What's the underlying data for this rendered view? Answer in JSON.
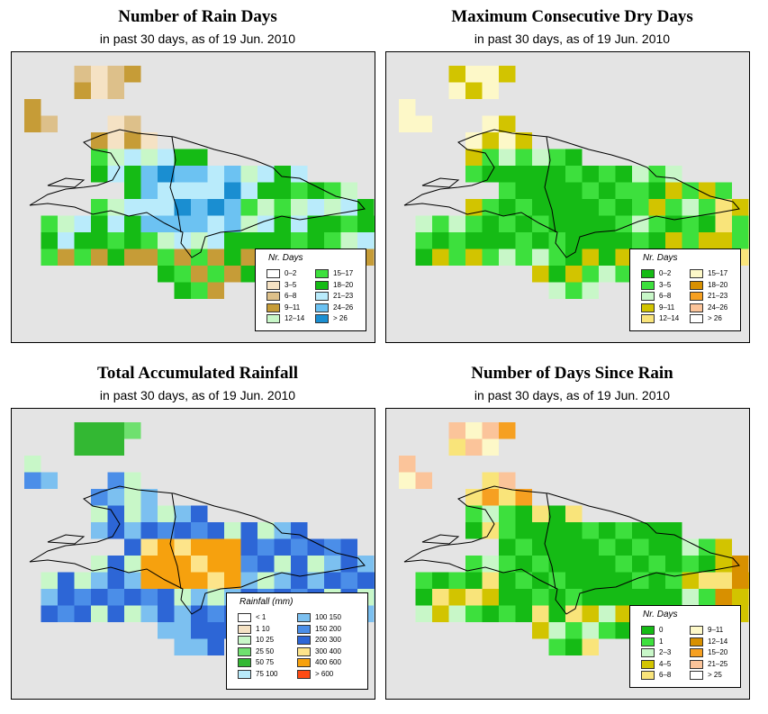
{
  "panels": [
    {
      "id": "rain-days",
      "title": "Number of Rain Days",
      "subtitle": "in past 30 days, as of  19 Jun. 2010",
      "legend": {
        "title": "Nr. Days",
        "items": [
          {
            "label": "0–2",
            "color": "#ffffff"
          },
          {
            "label": "3–5",
            "color": "#f5e2c4"
          },
          {
            "label": "6–8",
            "color": "#ddc08a"
          },
          {
            "label": "9–11",
            "color": "#c69c37"
          },
          {
            "label": "12–14",
            "color": "#c8f7c8"
          },
          {
            "label": "15–17",
            "color": "#3de03d"
          },
          {
            "label": "18–20",
            "color": "#15bb15"
          },
          {
            "label": "21–23",
            "color": "#b9ebfb"
          },
          {
            "label": "24–26",
            "color": "#6cc2f2"
          },
          {
            "label": "> 26",
            "color": "#1a8ed1"
          }
        ]
      }
    },
    {
      "id": "dry-days",
      "title": "Maximum Consecutive Dry Days",
      "subtitle": "in past 30 days, as of  19 Jun. 2010",
      "legend": {
        "title": "Nr. Days",
        "items": [
          {
            "label": "0–2",
            "color": "#15bb15"
          },
          {
            "label": "3–5",
            "color": "#3de03d"
          },
          {
            "label": "6–8",
            "color": "#c8f7c8"
          },
          {
            "label": "9–11",
            "color": "#d2c400"
          },
          {
            "label": "12–14",
            "color": "#f9e47a"
          },
          {
            "label": "15–17",
            "color": "#fdf8c8"
          },
          {
            "label": "18–20",
            "color": "#d89000"
          },
          {
            "label": "21–23",
            "color": "#f6a021"
          },
          {
            "label": "24–26",
            "color": "#fbc49a"
          },
          {
            "label": "> 26",
            "color": "#ffffff"
          }
        ]
      }
    },
    {
      "id": "rainfall",
      "title": "Total Accumulated Rainfall",
      "subtitle": "in past 30 days, as of  19 Jun. 2010",
      "legend": {
        "title": "Rainfall (mm)",
        "items": [
          {
            "label": "< 1",
            "color": "#ffffff"
          },
          {
            "label": "1  10",
            "color": "#f5e2c4"
          },
          {
            "label": "10  25",
            "color": "#c8f7c8"
          },
          {
            "label": "25  50",
            "color": "#6fe06f"
          },
          {
            "label": "50  75",
            "color": "#33b833"
          },
          {
            "label": "75  100",
            "color": "#b9ebfb"
          },
          {
            "label": "100  150",
            "color": "#7cc0f0"
          },
          {
            "label": "150  200",
            "color": "#4b8ee8"
          },
          {
            "label": "200  300",
            "color": "#2d66d6"
          },
          {
            "label": "300  400",
            "color": "#fde48a"
          },
          {
            "label": "400  600",
            "color": "#f6a10e"
          },
          {
            "label": "> 600",
            "color": "#ff4b14"
          }
        ]
      }
    },
    {
      "id": "days-since-rain",
      "title": "Number of Days Since Rain",
      "subtitle": "in past 30 days, as of  19 Jun. 2010",
      "legend": {
        "title": "Nr. Days",
        "items": [
          {
            "label": "0",
            "color": "#15bb15"
          },
          {
            "label": "1",
            "color": "#3de03d"
          },
          {
            "label": "2–3",
            "color": "#c8f7c8"
          },
          {
            "label": "4–5",
            "color": "#d2c400"
          },
          {
            "label": "6–8",
            "color": "#f9e47a"
          },
          {
            "label": "9–11",
            "color": "#fdf8c8"
          },
          {
            "label": "12–14",
            "color": "#d89000"
          },
          {
            "label": "15–20",
            "color": "#f6a021"
          },
          {
            "label": "21–25",
            "color": "#fbc49a"
          },
          {
            "label": "> 25",
            "color": "#ffffff"
          }
        ]
      }
    }
  ]
}
